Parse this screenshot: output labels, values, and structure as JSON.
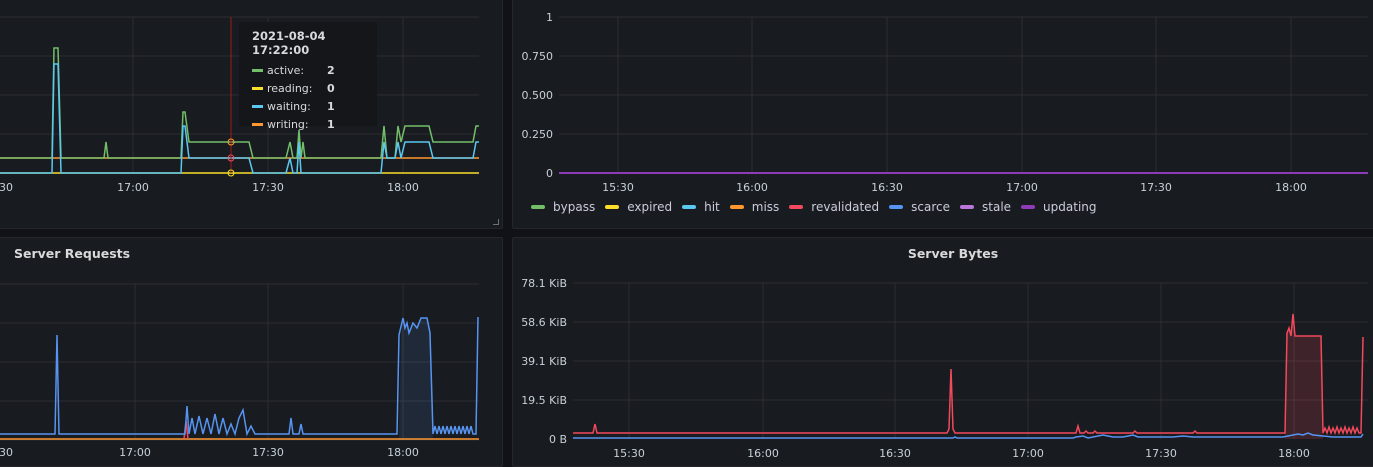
{
  "colors": {
    "green": "#73bf69",
    "yellow": "#fade2a",
    "cyan": "#5ac8f0",
    "orange": "#ff9830",
    "red": "#f2495c",
    "blue": "#5794f2",
    "pink": "#b877d9",
    "purple": "#8f3bb8",
    "crosshair": "#a01a1a"
  },
  "top_left": {
    "x_ticks": [
      "30",
      "17:00",
      "17:30",
      "18:00"
    ],
    "tooltip": {
      "time": "2021-08-04 17:22:00",
      "rows": [
        {
          "label": "active:",
          "value": "2",
          "color": "#73bf69"
        },
        {
          "label": "reading:",
          "value": "0",
          "color": "#fade2a"
        },
        {
          "label": "waiting:",
          "value": "1",
          "color": "#5ac8f0"
        },
        {
          "label": "writing:",
          "value": "1",
          "color": "#ff9830"
        }
      ]
    }
  },
  "top_right": {
    "y_ticks": [
      "1",
      "0.750",
      "0.500",
      "0.250",
      "0"
    ],
    "x_ticks": [
      "15:30",
      "16:00",
      "16:30",
      "17:00",
      "17:30",
      "18:00"
    ],
    "legend": [
      {
        "label": "bypass",
        "color": "#73bf69"
      },
      {
        "label": "expired",
        "color": "#fade2a"
      },
      {
        "label": "hit",
        "color": "#5ac8f0"
      },
      {
        "label": "miss",
        "color": "#ff9830"
      },
      {
        "label": "revalidated",
        "color": "#f2495c"
      },
      {
        "label": "scarce",
        "color": "#5794f2"
      },
      {
        "label": "stale",
        "color": "#b877d9"
      },
      {
        "label": "updating",
        "color": "#8f3bb8"
      }
    ]
  },
  "bottom_left": {
    "title": "Server Requests",
    "x_ticks": [
      "30",
      "17:00",
      "17:30",
      "18:00"
    ]
  },
  "bottom_right": {
    "title": "Server Bytes",
    "y_ticks": [
      "78.1 KiB",
      "58.6 KiB",
      "39.1 KiB",
      "19.5 KiB",
      "0 B"
    ],
    "x_ticks": [
      "15:30",
      "16:00",
      "16:30",
      "17:00",
      "17:30",
      "18:00"
    ]
  },
  "chart_data": [
    {
      "type": "line",
      "title": "",
      "x_ticks": [
        "17:00",
        "17:30",
        "18:00"
      ],
      "series": [
        {
          "name": "active",
          "color": "#73bf69"
        },
        {
          "name": "reading",
          "color": "#fade2a"
        },
        {
          "name": "waiting",
          "color": "#5ac8f0"
        },
        {
          "name": "writing",
          "color": "#ff9830"
        }
      ]
    },
    {
      "type": "line",
      "ylim": [
        0,
        1
      ],
      "y_ticks": [
        "0",
        "0.250",
        "0.500",
        "0.750",
        "1"
      ],
      "x_ticks": [
        "15:30",
        "16:00",
        "16:30",
        "17:00",
        "17:30",
        "18:00"
      ],
      "series": [
        {
          "name": "bypass",
          "values": [
            0,
            0,
            0,
            0,
            0,
            0
          ]
        },
        {
          "name": "expired",
          "values": [
            0,
            0,
            0,
            0,
            0,
            0
          ]
        },
        {
          "name": "hit",
          "values": [
            0,
            0,
            0,
            0,
            0,
            0
          ]
        },
        {
          "name": "miss",
          "values": [
            0,
            0,
            0,
            0,
            0,
            0
          ]
        },
        {
          "name": "revalidated",
          "values": [
            0,
            0,
            0,
            0,
            0,
            0
          ]
        },
        {
          "name": "scarce",
          "values": [
            0,
            0,
            0,
            0,
            0,
            0
          ]
        },
        {
          "name": "stale",
          "values": [
            0,
            0,
            0,
            0,
            0,
            0
          ]
        },
        {
          "name": "updating",
          "values": [
            0,
            0,
            0,
            0,
            0,
            0
          ]
        }
      ]
    },
    {
      "type": "line",
      "title": "Server Requests",
      "x_ticks": [
        "17:00",
        "17:30",
        "18:00"
      ]
    },
    {
      "type": "line",
      "title": "Server Bytes",
      "ylim": [
        "0 B",
        "78.1 KiB"
      ],
      "y_ticks": [
        "0 B",
        "19.5 KiB",
        "39.1 KiB",
        "58.6 KiB",
        "78.1 KiB"
      ],
      "x_ticks": [
        "15:30",
        "16:00",
        "16:30",
        "17:00",
        "17:30",
        "18:00"
      ]
    }
  ]
}
